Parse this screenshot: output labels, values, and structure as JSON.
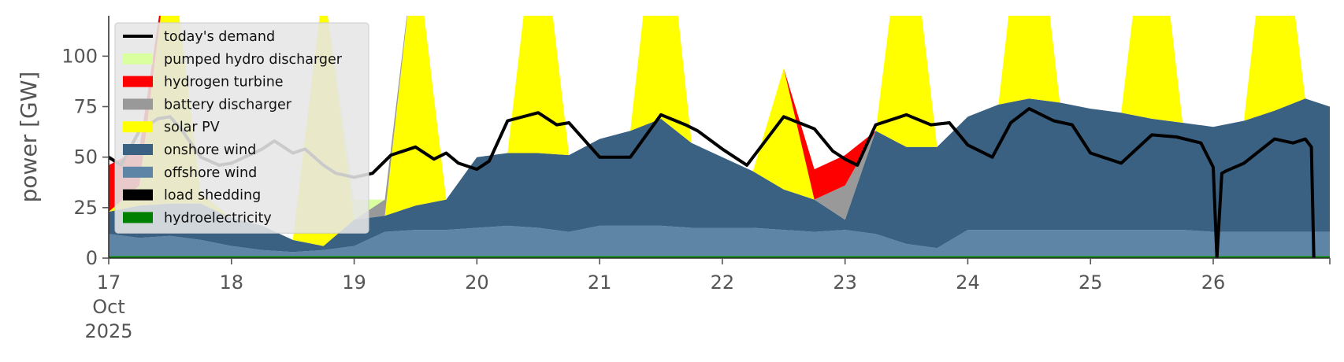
{
  "chart_data": {
    "type": "area",
    "ylabel": "power [GW]",
    "ylim": [
      0,
      120
    ],
    "xlim": [
      0,
      9.95
    ],
    "x_unit": "days from 17 Oct 2025",
    "y_ticks": [
      0,
      25,
      50,
      75,
      100
    ],
    "x_ticks": [
      {
        "x": 0,
        "lines": [
          "17",
          "Oct",
          "2025"
        ]
      },
      {
        "x": 1,
        "lines": [
          "18"
        ]
      },
      {
        "x": 2,
        "lines": [
          "19"
        ]
      },
      {
        "x": 3,
        "lines": [
          "20"
        ]
      },
      {
        "x": 4,
        "lines": [
          "21"
        ]
      },
      {
        "x": 5,
        "lines": [
          "22"
        ]
      },
      {
        "x": 6,
        "lines": [
          "23"
        ]
      },
      {
        "x": 7,
        "lines": [
          "24"
        ]
      },
      {
        "x": 8,
        "lines": [
          "25"
        ]
      },
      {
        "x": 9,
        "lines": [
          "26"
        ]
      }
    ],
    "grid": false,
    "background": "#ffffff",
    "legend_position": "top-left",
    "x": [
      0,
      0.25,
      0.5,
      0.75,
      1.0,
      1.25,
      1.5,
      1.75,
      2.0,
      2.25,
      2.5,
      2.75,
      3.0,
      3.25,
      3.5,
      3.75,
      4.0,
      4.25,
      4.5,
      4.75,
      5.0,
      5.25,
      5.5,
      5.75,
      6.0,
      6.25,
      6.5,
      6.75,
      7.0,
      7.25,
      7.5,
      7.75,
      8.0,
      8.25,
      8.5,
      8.75,
      9.0,
      9.25,
      9.5,
      9.75,
      9.95
    ],
    "series": [
      {
        "name": "hydroelectricity",
        "color": "#008000",
        "values": [
          1,
          1,
          1,
          1,
          1,
          1,
          1,
          1,
          1,
          1,
          1,
          1,
          1,
          1,
          1,
          1,
          1,
          1,
          1,
          1,
          1,
          1,
          1,
          1,
          1,
          1,
          1,
          1,
          1,
          1,
          1,
          1,
          1,
          1,
          1,
          1,
          1,
          1,
          1,
          1,
          1
        ]
      },
      {
        "name": "offshore wind",
        "color": "#5f85a6",
        "values": [
          11,
          9,
          10,
          8,
          5,
          3,
          2,
          3,
          5,
          12,
          13,
          13,
          14,
          15,
          14,
          12,
          15,
          15,
          15,
          14,
          14,
          14,
          13,
          12,
          13,
          11,
          6,
          4,
          13,
          13,
          13,
          13,
          13,
          13,
          13,
          13,
          12,
          12,
          12,
          12,
          12
        ]
      },
      {
        "name": "onshore wind",
        "color": "#3b6182",
        "values": [
          11,
          16,
          16,
          18,
          14,
          12,
          6,
          2,
          13,
          8,
          12,
          15,
          35,
          36,
          37,
          38,
          43,
          47,
          53,
          42,
          35,
          28,
          20,
          16,
          5,
          51,
          48,
          50,
          56,
          62,
          65,
          63,
          60,
          58,
          55,
          53,
          52,
          55,
          60,
          66,
          62
        ]
      },
      {
        "name": "solar PV",
        "color": "#ffff00",
        "values": [
          0,
          10,
          130,
          5,
          0,
          0,
          0,
          130,
          0,
          0,
          130,
          0,
          0,
          0,
          130,
          0,
          0,
          0,
          130,
          0,
          0,
          0,
          60,
          0,
          0,
          0,
          130,
          0,
          0,
          0,
          130,
          0,
          0,
          0,
          130,
          0,
          0,
          0,
          130,
          0,
          0
        ]
      },
      {
        "name": "battery discharger",
        "color": "#999999",
        "values": [
          0,
          0,
          0,
          0,
          0,
          0,
          0,
          0,
          0,
          8,
          0,
          0,
          0,
          0,
          0,
          0,
          0,
          0,
          0,
          0,
          0,
          0,
          0,
          0,
          17,
          0,
          0,
          0,
          0,
          0,
          0,
          0,
          0,
          0,
          0,
          0,
          0,
          0,
          0,
          0,
          0
        ]
      },
      {
        "name": "hydrogen turbine",
        "color": "#ff0000",
        "values": [
          23,
          18,
          0,
          0,
          0,
          0,
          0,
          0,
          0,
          0,
          0,
          0,
          0,
          0,
          0,
          0,
          0,
          0,
          0,
          0,
          0,
          0,
          0,
          15,
          15,
          0,
          0,
          0,
          0,
          0,
          0,
          0,
          0,
          0,
          0,
          0,
          0,
          0,
          0,
          0,
          0
        ]
      },
      {
        "name": "pumped hydro discharger",
        "color": "#d9ff9f",
        "values": [
          0,
          0,
          0,
          0,
          0,
          0,
          0,
          0,
          10,
          0,
          0,
          0,
          0,
          0,
          0,
          0,
          0,
          0,
          0,
          0,
          0,
          0,
          0,
          0,
          0,
          0,
          0,
          0,
          0,
          0,
          0,
          0,
          0,
          0,
          0,
          0,
          0,
          0,
          0,
          0,
          0
        ]
      },
      {
        "name": "load shedding",
        "color": "#000000",
        "values": [
          0,
          0,
          0,
          0,
          0,
          0,
          0,
          0,
          0,
          0,
          0,
          0,
          0,
          0,
          0,
          0,
          0,
          0,
          0,
          0,
          0,
          0,
          0,
          0,
          0,
          0,
          0,
          0,
          0,
          0,
          0,
          0,
          0,
          0,
          0,
          0,
          0,
          0,
          0,
          0,
          0
        ]
      }
    ],
    "demand": {
      "name": "today's demand",
      "color": "#000000",
      "x": [
        0,
        0.1,
        0.25,
        0.4,
        0.5,
        0.6,
        0.75,
        0.9,
        1.0,
        1.25,
        1.35,
        1.5,
        1.6,
        1.75,
        1.85,
        2.0,
        2.15,
        2.3,
        2.5,
        2.65,
        2.75,
        2.85,
        3.0,
        3.1,
        3.25,
        3.5,
        3.65,
        3.75,
        4.0,
        4.25,
        4.5,
        4.7,
        4.8,
        5.0,
        5.2,
        5.5,
        5.75,
        5.9,
        6.0,
        6.1,
        6.25,
        6.5,
        6.7,
        6.85,
        7.0,
        7.2,
        7.35,
        7.5,
        7.7,
        7.85,
        8.0,
        8.25,
        8.5,
        8.7,
        8.9,
        9.0,
        9.03,
        9.07,
        9.1,
        9.25,
        9.5,
        9.65,
        9.75,
        9.8,
        9.82
      ],
      "values": [
        50,
        46,
        63,
        69,
        70,
        63,
        50,
        46,
        47,
        54,
        58,
        52,
        54,
        46,
        42,
        40,
        42,
        51,
        55,
        49,
        52,
        47,
        44,
        48,
        68,
        72,
        66,
        67,
        50,
        50,
        71,
        66,
        63,
        54,
        46,
        70,
        64,
        53,
        49,
        46,
        66,
        71,
        66,
        67,
        56,
        50,
        67,
        74,
        68,
        66,
        52,
        47,
        61,
        60,
        57,
        45,
        0,
        42,
        43,
        47,
        59,
        57,
        59,
        55,
        0
      ]
    }
  }
}
